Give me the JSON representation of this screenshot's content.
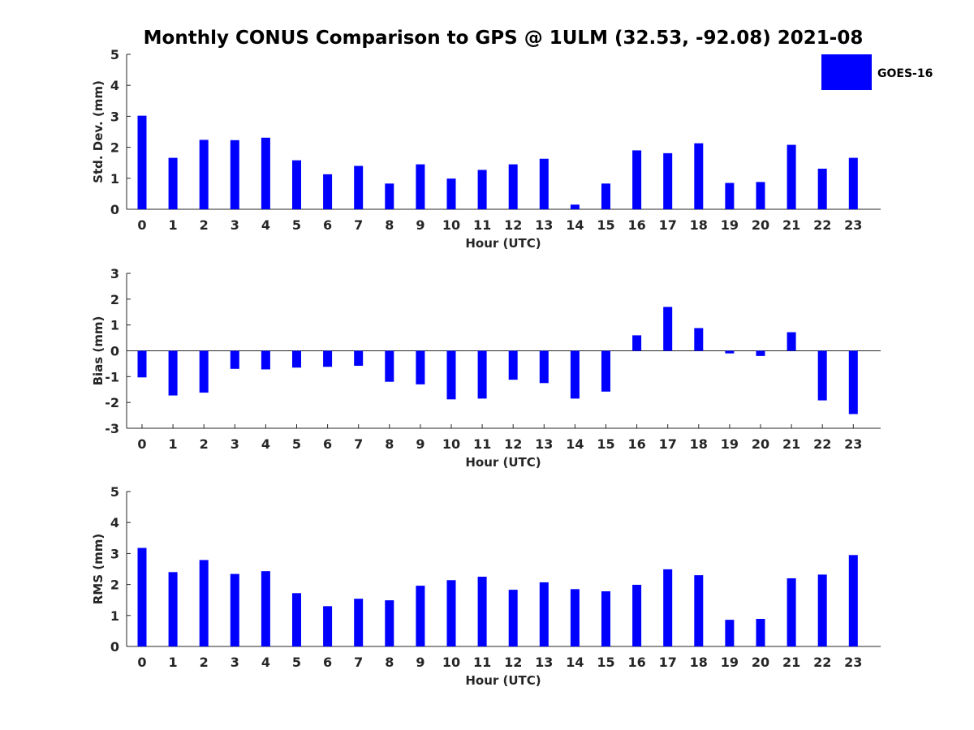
{
  "chart_data": [
    {
      "type": "bar",
      "title": "Monthly CONUS Comparison to GPS @ 1ULM (32.53, -92.08) 2021-08",
      "xlabel": "Hour (UTC)",
      "ylabel": "Std. Dev. (mm)",
      "ylim": [
        0,
        5
      ],
      "yticks": [
        0,
        1,
        2,
        3,
        4,
        5
      ],
      "categories": [
        "0",
        "1",
        "2",
        "3",
        "4",
        "5",
        "6",
        "7",
        "8",
        "9",
        "10",
        "11",
        "12",
        "13",
        "14",
        "15",
        "16",
        "17",
        "18",
        "19",
        "20",
        "21",
        "22",
        "23"
      ],
      "series": [
        {
          "name": "GOES-16",
          "color": "#0000ff",
          "values": [
            3.02,
            1.66,
            2.24,
            2.23,
            2.31,
            1.58,
            1.13,
            1.4,
            0.83,
            1.45,
            0.99,
            1.27,
            1.45,
            1.63,
            0.15,
            0.83,
            1.9,
            1.81,
            2.13,
            0.85,
            0.88,
            2.08,
            1.31,
            1.66
          ]
        }
      ],
      "legend": "top-right",
      "grid": false
    },
    {
      "type": "bar",
      "xlabel": "Hour (UTC)",
      "ylabel": "Bias (mm)",
      "ylim": [
        -3,
        3
      ],
      "yticks": [
        -3,
        -2,
        -1,
        0,
        1,
        2,
        3
      ],
      "categories": [
        "0",
        "1",
        "2",
        "3",
        "4",
        "5",
        "6",
        "7",
        "8",
        "9",
        "10",
        "11",
        "12",
        "13",
        "14",
        "15",
        "16",
        "17",
        "18",
        "19",
        "20",
        "21",
        "22",
        "23"
      ],
      "series": [
        {
          "name": "GOES-16",
          "color": "#0000ff",
          "values": [
            -1.03,
            -1.73,
            -1.62,
            -0.7,
            -0.72,
            -0.65,
            -0.62,
            -0.58,
            -1.2,
            -1.3,
            -1.88,
            -1.85,
            -1.12,
            -1.25,
            -1.85,
            -1.58,
            0.6,
            1.7,
            0.88,
            -0.1,
            -0.2,
            0.72,
            -1.92,
            -2.45
          ]
        }
      ],
      "zero_line": true,
      "grid": false
    },
    {
      "type": "bar",
      "xlabel": "Hour (UTC)",
      "ylabel": "RMS (mm)",
      "ylim": [
        0,
        5
      ],
      "yticks": [
        0,
        1,
        2,
        3,
        4,
        5
      ],
      "categories": [
        "0",
        "1",
        "2",
        "3",
        "4",
        "5",
        "6",
        "7",
        "8",
        "9",
        "10",
        "11",
        "12",
        "13",
        "14",
        "15",
        "16",
        "17",
        "18",
        "19",
        "20",
        "21",
        "22",
        "23"
      ],
      "series": [
        {
          "name": "GOES-16",
          "color": "#0000ff",
          "values": [
            3.18,
            2.4,
            2.79,
            2.34,
            2.43,
            1.72,
            1.3,
            1.54,
            1.49,
            1.96,
            2.14,
            2.25,
            1.83,
            2.07,
            1.85,
            1.78,
            1.99,
            2.49,
            2.3,
            0.86,
            0.89,
            2.2,
            2.32,
            2.95
          ]
        }
      ],
      "grid": false
    }
  ],
  "legend": {
    "label": "GOES-16",
    "color": "#0000ff"
  }
}
